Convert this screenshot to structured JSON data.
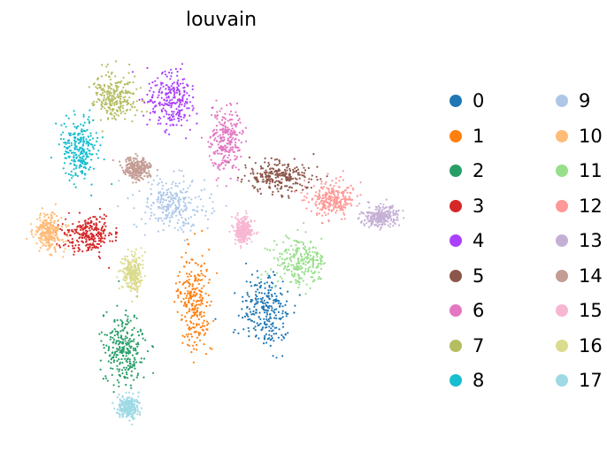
{
  "chart_data": {
    "type": "scatter",
    "title": "louvain",
    "xlabel": "",
    "ylabel": "",
    "grid": false,
    "axes_visible": false,
    "legend_placement": "right, two columns",
    "series": [
      {
        "name": "0",
        "color": "#1f77b4",
        "center": [
          300,
          350
        ],
        "spread": [
          28,
          45
        ]
      },
      {
        "name": "1",
        "color": "#ff7f0e",
        "center": [
          220,
          340
        ],
        "spread": [
          18,
          55
        ]
      },
      {
        "name": "2",
        "color": "#279e68",
        "center": [
          140,
          395
        ],
        "spread": [
          22,
          40
        ]
      },
      {
        "name": "3",
        "color": "#d62728",
        "center": [
          100,
          265
        ],
        "spread": [
          28,
          22
        ]
      },
      {
        "name": "4",
        "color": "#aa40fc",
        "center": [
          195,
          115
        ],
        "spread": [
          28,
          32
        ]
      },
      {
        "name": "5",
        "color": "#8c564b",
        "center": [
          315,
          200
        ],
        "spread": [
          38,
          18
        ]
      },
      {
        "name": "6",
        "color": "#e377c2",
        "center": [
          255,
          160
        ],
        "spread": [
          18,
          35
        ]
      },
      {
        "name": "7",
        "color": "#b5bd61",
        "center": [
          130,
          110
        ],
        "spread": [
          25,
          28
        ]
      },
      {
        "name": "8",
        "color": "#17becf",
        "center": [
          90,
          170
        ],
        "spread": [
          20,
          35
        ]
      },
      {
        "name": "9",
        "color": "#aec7e8",
        "center": [
          195,
          230
        ],
        "spread": [
          40,
          30
        ]
      },
      {
        "name": "10",
        "color": "#ffbb78",
        "center": [
          55,
          262
        ],
        "spread": [
          18,
          20
        ]
      },
      {
        "name": "11",
        "color": "#98df8a",
        "center": [
          340,
          295
        ],
        "spread": [
          30,
          25
        ]
      },
      {
        "name": "12",
        "color": "#ff9896",
        "center": [
          375,
          225
        ],
        "spread": [
          25,
          18
        ]
      },
      {
        "name": "13",
        "color": "#c5b0d5",
        "center": [
          430,
          245
        ],
        "spread": [
          20,
          12
        ]
      },
      {
        "name": "14",
        "color": "#c49c94",
        "center": [
          155,
          190
        ],
        "spread": [
          15,
          12
        ]
      },
      {
        "name": "15",
        "color": "#f7b6d2",
        "center": [
          275,
          260
        ],
        "spread": [
          10,
          15
        ]
      },
      {
        "name": "16",
        "color": "#dbdb8d",
        "center": [
          150,
          310
        ],
        "spread": [
          12,
          20
        ]
      },
      {
        "name": "17",
        "color": "#9edae5",
        "center": [
          145,
          460
        ],
        "spread": [
          12,
          12
        ]
      }
    ]
  }
}
